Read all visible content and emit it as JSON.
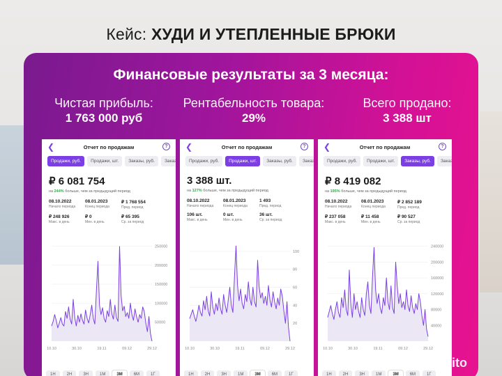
{
  "header": {
    "prefix": "Кейс:",
    "name": "ХУДИ И УТЕПЛЕННЫЕ БРЮКИ"
  },
  "panel": {
    "title": "Финансовые результаты за 3 месяца:",
    "stats": [
      {
        "label": "Чистая прибыль:",
        "value": "1 763 000 руб"
      },
      {
        "label": "Рентабельность товара:",
        "value": "29%"
      },
      {
        "label": "Всего продано:",
        "value": "3 388 шт"
      }
    ]
  },
  "cards": [
    {
      "title": "Отчет по продажам",
      "tabs": [
        "Продажи, руб.",
        "Продажи, шт.",
        "Заказы, руб.",
        "Заказ"
      ],
      "active_tab": 0,
      "big_value": "₽ 6 081 754",
      "delta_pct": "244%",
      "delta_text": "больше, чем за предыдущий период",
      "cells": [
        {
          "v": "08.10.2022",
          "l": "Начало периода"
        },
        {
          "v": "08.01.2023",
          "l": "Конец периода"
        },
        {
          "v": "₽ 1 768 554",
          "l": "Пред. период"
        },
        {
          "v": "₽ 248 926",
          "l": "Макс. в день"
        },
        {
          "v": "₽ 0",
          "l": "Мин. в день"
        },
        {
          "v": "₽ 65 395",
          "l": "Ср. за период"
        }
      ],
      "periods": [
        "1Н",
        "2Н",
        "3Н",
        "1М",
        "3М",
        "6М",
        "1Г"
      ],
      "active_period": 4,
      "chart_data": {
        "type": "area",
        "y_ticks": [
          "250000",
          "200000",
          "150000",
          "100000",
          "50000"
        ],
        "x_ticks": [
          "10.10",
          "30.10",
          "19.11",
          "09.12",
          "29.12"
        ],
        "ylim": [
          0,
          260000
        ],
        "values": [
          40000,
          52000,
          70000,
          55000,
          35000,
          48000,
          62000,
          45000,
          40000,
          78000,
          60000,
          90000,
          58000,
          45000,
          110000,
          62000,
          40000,
          68000,
          50000,
          72000,
          55000,
          45000,
          82000,
          60000,
          48000,
          70000,
          95000,
          60000,
          45000,
          130000,
          210000,
          95000,
          70000,
          88000,
          60000,
          50000,
          80000,
          65000,
          110000,
          72000,
          58000,
          95000,
          62000,
          52000,
          248926,
          120000,
          80000,
          92000,
          65000,
          75000,
          60000,
          100000,
          70000,
          55000,
          85000,
          65000,
          50000,
          70000,
          60000,
          90000,
          78000,
          48000,
          25000,
          65000,
          20000,
          0
        ]
      }
    },
    {
      "title": "Отчет по продажам",
      "tabs": [
        "Продажи, руб.",
        "Продажи, шт.",
        "Заказы, руб.",
        "Заказ"
      ],
      "active_tab": 1,
      "big_value": "3 388 шт.",
      "delta_pct": "127%",
      "delta_text": "больше, чем за предыдущий период",
      "cells": [
        {
          "v": "08.10.2022",
          "l": "Начало периода"
        },
        {
          "v": "08.01.2023",
          "l": "Конец периода"
        },
        {
          "v": "1 493",
          "l": "Пред. период"
        },
        {
          "v": "106 шт.",
          "l": "Макс. в день"
        },
        {
          "v": "0 шт.",
          "l": "Мин. в день"
        },
        {
          "v": "36 шт.",
          "l": "Ср. за период"
        }
      ],
      "periods": [
        "1Н",
        "2Н",
        "3Н",
        "1М",
        "3М",
        "6М",
        "1Г"
      ],
      "active_period": 4,
      "chart_data": {
        "type": "area",
        "y_ticks": [
          "100",
          "80",
          "60",
          "40",
          "20"
        ],
        "x_ticks": [
          "10.10",
          "30.10",
          "19.11",
          "09.12",
          "29.12"
        ],
        "ylim": [
          0,
          110
        ],
        "values": [
          25,
          30,
          35,
          28,
          22,
          30,
          40,
          32,
          28,
          45,
          35,
          50,
          34,
          28,
          55,
          38,
          30,
          42,
          34,
          48,
          36,
          30,
          52,
          40,
          32,
          46,
          60,
          40,
          32,
          70,
          106,
          62,
          45,
          58,
          42,
          36,
          52,
          44,
          66,
          48,
          40,
          60,
          44,
          38,
          90,
          60,
          48,
          54,
          42,
          50,
          40,
          62,
          46,
          38,
          55,
          44,
          36,
          48,
          40,
          58,
          50,
          34,
          20,
          44,
          15,
          0
        ]
      }
    },
    {
      "title": "Отчет по продажам",
      "tabs": [
        "Продажи, руб.",
        "Продажи, шт.",
        "Заказы, руб.",
        "Заказ"
      ],
      "active_tab": 2,
      "big_value": "₽ 8 419 082",
      "delta_pct": "195%",
      "delta_text": "больше, чем за предыдущий период",
      "cells": [
        {
          "v": "08.10.2022",
          "l": "Начало периода"
        },
        {
          "v": "08.01.2023",
          "l": "Конец периода"
        },
        {
          "v": "₽ 2 852 189",
          "l": "Пред. период"
        },
        {
          "v": "₽ 237 058",
          "l": "Макс. в день"
        },
        {
          "v": "₽ 11 458",
          "l": "Мин. в день"
        },
        {
          "v": "₽ 90 527",
          "l": "Ср. за период"
        }
      ],
      "periods": [
        "1Н",
        "2Н",
        "3Н",
        "1М",
        "3М",
        "6М",
        "1Г"
      ],
      "active_period": 4,
      "chart_data": {
        "type": "area",
        "y_ticks": [
          "240000",
          "200000",
          "160000",
          "120000",
          "80000",
          "40000"
        ],
        "x_ticks": [
          "10.10",
          "30.10",
          "19.11",
          "09.12",
          "29.12"
        ],
        "ylim": [
          0,
          250000
        ],
        "values": [
          60000,
          75000,
          90000,
          70000,
          55000,
          80000,
          100000,
          72000,
          60000,
          110000,
          85000,
          130000,
          80000,
          65000,
          180000,
          95000,
          60000,
          120000,
          80000,
          100000,
          75000,
          60000,
          110000,
          80000,
          65000,
          120000,
          150000,
          90000,
          70000,
          160000,
          237058,
          130000,
          95000,
          120000,
          85000,
          70000,
          110000,
          90000,
          160000,
          100000,
          80000,
          140000,
          85000,
          70000,
          200000,
          140000,
          95000,
          120000,
          85000,
          100000,
          80000,
          130000,
          90000,
          75000,
          115000,
          85000,
          70000,
          95000,
          80000,
          120000,
          100000,
          65000,
          40000,
          80000,
          30000,
          11458
        ]
      }
    }
  ],
  "brand": {
    "logo_text": "Avito"
  }
}
